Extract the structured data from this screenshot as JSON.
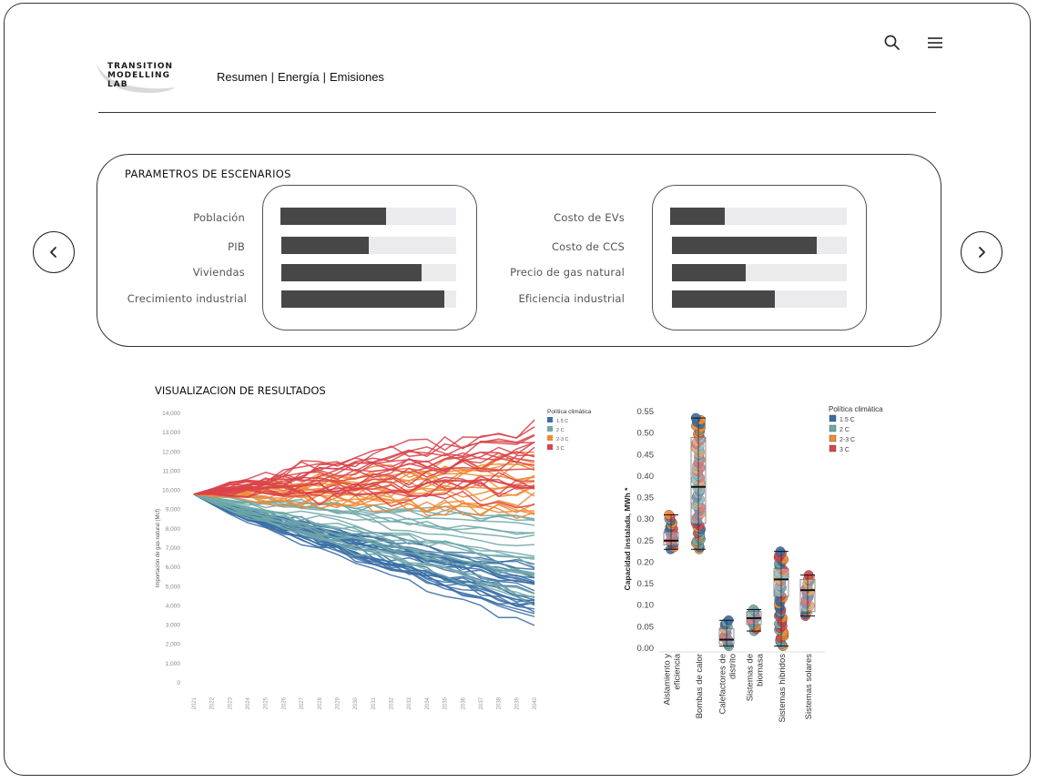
{
  "brand": {
    "logo_text": "TRANSITION\nMODELLING\nLAB"
  },
  "nav": {
    "items": [
      "Resumen",
      "Energía",
      "Emisiones"
    ],
    "separator": "|"
  },
  "header_icons": [
    "search-icon",
    "menu-icon"
  ],
  "parameters": {
    "title": "PARAMETROS DE ESCENARIOS",
    "left": [
      {
        "label": "Población",
        "value": 0.6
      },
      {
        "label": "PIB",
        "value": 0.5
      },
      {
        "label": "Viviendas",
        "value": 0.8
      },
      {
        "label": "Crecimiento industrial",
        "value": 0.93
      }
    ],
    "right": [
      {
        "label": "Costo de EVs",
        "value": 0.31
      },
      {
        "label": "Costo de CCS",
        "value": 0.83
      },
      {
        "label": "Precio de gas natural",
        "value": 0.42
      },
      {
        "label": "Eficiencia industrial",
        "value": 0.59
      }
    ],
    "colors": {
      "fill": "#474747",
      "track": "#ebebee"
    }
  },
  "navigation": {
    "prev_icon": "chevron-left-icon",
    "next_icon": "chevron-right-icon"
  },
  "results": {
    "title": "VISUALIZACION DE RESULTADOS"
  },
  "colors": {
    "1.5 C": "#3a6ea5",
    "2 C": "#6fa9a8",
    "2-3 C": "#f08a35",
    "3 C": "#d9434b"
  },
  "chart_data": [
    {
      "type": "line",
      "title": "",
      "ylabel": "Importación de gas natural (Mcf)",
      "xlabel": "",
      "x": [
        2021,
        2022,
        2023,
        2024,
        2025,
        2026,
        2027,
        2028,
        2029,
        2030,
        2031,
        2032,
        2033,
        2034,
        2035,
        2036,
        2037,
        2038,
        2039,
        2040
      ],
      "ylim": [
        0,
        14000
      ],
      "yticks": [
        "0",
        "1,000",
        "2,000",
        "3,000",
        "4,000",
        "5,000",
        "6,000",
        "7,000",
        "8,000",
        "9,000",
        "10,000",
        "11,000",
        "12,000",
        "13,000",
        "14,000"
      ],
      "legend_title": "Política climática",
      "legend_position": "top-right",
      "series": [
        {
          "name": "1.5 C",
          "line_count": 28,
          "start": 9800,
          "end_range": [
            3300,
            6000
          ]
        },
        {
          "name": "2 C",
          "line_count": 20,
          "start": 9800,
          "end_range": [
            4200,
            8800
          ]
        },
        {
          "name": "2-3 C",
          "line_count": 18,
          "start": 9800,
          "end_range": [
            8600,
            11800
          ]
        },
        {
          "name": "3 C",
          "line_count": 20,
          "start": 9800,
          "end_range": [
            9800,
            13300
          ]
        }
      ]
    },
    {
      "type": "scatter",
      "title": "",
      "ylabel": "Capacidad instalada, MWh *",
      "ylim": [
        0,
        0.55
      ],
      "yticks": [
        "0.00",
        "0.05",
        "0.10",
        "0.15",
        "0.20",
        "0.25",
        "0.30",
        "0.35",
        "0.40",
        "0.45",
        "0.50",
        "0.55"
      ],
      "legend_title": "Política climática",
      "legend_position": "top-right",
      "legend": [
        "1.5 C",
        "2 C",
        "2-3 C",
        "3 C"
      ],
      "categories": [
        "Aislamiento y eficiencia",
        "Bombas de calor",
        "Calefactores de distrito",
        "Sistemas de biomasa",
        "Sistemas híbridos",
        "Sistemas solares"
      ],
      "boxes": [
        {
          "min": 0.23,
          "q1": 0.24,
          "median": 0.25,
          "q3": 0.27,
          "max": 0.31
        },
        {
          "min": 0.23,
          "q1": 0.29,
          "median": 0.375,
          "q3": 0.49,
          "max": 0.535
        },
        {
          "min": 0.005,
          "q1": 0.01,
          "median": 0.02,
          "q3": 0.045,
          "max": 0.065
        },
        {
          "min": 0.04,
          "q1": 0.055,
          "median": 0.07,
          "q3": 0.085,
          "max": 0.09
        },
        {
          "min": 0.005,
          "q1": 0.12,
          "median": 0.16,
          "q3": 0.185,
          "max": 0.225
        },
        {
          "min": 0.075,
          "q1": 0.085,
          "median": 0.135,
          "q3": 0.16,
          "max": 0.17
        }
      ]
    }
  ]
}
